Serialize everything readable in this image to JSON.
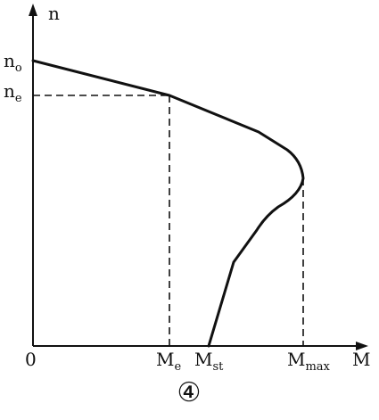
{
  "diagram": {
    "y_axis_label": "n",
    "x_axis_label": "M",
    "origin_label": "0",
    "y_ticks": [
      {
        "base": "n",
        "sub": "o"
      },
      {
        "base": "n",
        "sub": "e"
      }
    ],
    "x_ticks": [
      {
        "base": "M",
        "sub": "e"
      },
      {
        "base": "M",
        "sub": "st"
      },
      {
        "base": "M",
        "sub": "max"
      }
    ],
    "figure_number": "④"
  }
}
